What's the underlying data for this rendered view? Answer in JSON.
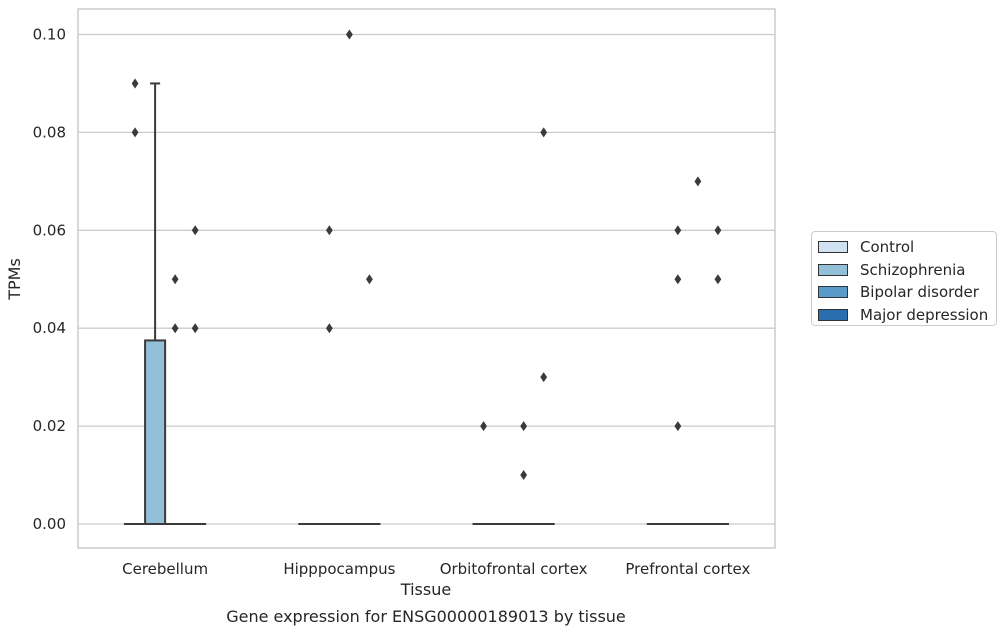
{
  "chart_data": {
    "type": "box",
    "caption": "Gene expression for ENSG00000189013 by tissue",
    "xlabel": "Tissue",
    "ylabel": "TPMs",
    "ylim": [
      -0.005,
      0.105
    ],
    "yticks": [
      "0.00",
      "0.02",
      "0.04",
      "0.06",
      "0.08",
      "0.10"
    ],
    "ytick_values": [
      0.0,
      0.02,
      0.04,
      0.06,
      0.08,
      0.1
    ],
    "grid": "horizontal",
    "legend_position": "right",
    "categories": [
      "Cerebellum",
      "Hipppocampus",
      "Orbitofrontal cortex",
      "Prefrontal cortex"
    ],
    "series": [
      {
        "name": "Control",
        "color": "#d0e1f2",
        "boxes": [
          {
            "category": "Cerebellum",
            "q1": 0,
            "median": 0,
            "q3": 0,
            "whisker_low": 0,
            "whisker_high": 0,
            "outliers": [
              0.08,
              0.09
            ]
          },
          {
            "category": "Hipppocampus",
            "q1": 0,
            "median": 0,
            "q3": 0,
            "whisker_low": 0,
            "whisker_high": 0,
            "outliers": []
          },
          {
            "category": "Orbitofrontal cortex",
            "q1": 0,
            "median": 0,
            "q3": 0,
            "whisker_low": 0,
            "whisker_high": 0,
            "outliers": [
              0.02
            ]
          },
          {
            "category": "Prefrontal cortex",
            "q1": 0,
            "median": 0,
            "q3": 0,
            "whisker_low": 0,
            "whisker_high": 0,
            "outliers": []
          }
        ]
      },
      {
        "name": "Schizophrenia",
        "color": "#94bfd9",
        "boxes": [
          {
            "category": "Cerebellum",
            "q1": 0,
            "median": 0,
            "q3": 0.0375,
            "whisker_low": 0,
            "whisker_high": 0.09,
            "outliers": []
          },
          {
            "category": "Hipppocampus",
            "q1": 0,
            "median": 0,
            "q3": 0,
            "whisker_low": 0,
            "whisker_high": 0,
            "outliers": [
              0.04,
              0.06
            ]
          },
          {
            "category": "Orbitofrontal cortex",
            "q1": 0,
            "median": 0,
            "q3": 0,
            "whisker_low": 0,
            "whisker_high": 0,
            "outliers": []
          },
          {
            "category": "Prefrontal cortex",
            "q1": 0,
            "median": 0,
            "q3": 0,
            "whisker_low": 0,
            "whisker_high": 0,
            "outliers": [
              0.02,
              0.05,
              0.06
            ]
          }
        ]
      },
      {
        "name": "Bipolar disorder",
        "color": "#5a9ac8",
        "boxes": [
          {
            "category": "Cerebellum",
            "q1": 0,
            "median": 0,
            "q3": 0,
            "whisker_low": 0,
            "whisker_high": 0,
            "outliers": [
              0.04,
              0.05
            ]
          },
          {
            "category": "Hipppocampus",
            "q1": 0,
            "median": 0,
            "q3": 0,
            "whisker_low": 0,
            "whisker_high": 0,
            "outliers": [
              0.1
            ]
          },
          {
            "category": "Orbitofrontal cortex",
            "q1": 0,
            "median": 0,
            "q3": 0,
            "whisker_low": 0,
            "whisker_high": 0,
            "outliers": [
              0.01,
              0.02
            ]
          },
          {
            "category": "Prefrontal cortex",
            "q1": 0,
            "median": 0,
            "q3": 0,
            "whisker_low": 0,
            "whisker_high": 0,
            "outliers": [
              0.07
            ]
          }
        ]
      },
      {
        "name": "Major depression",
        "color": "#2a6eb0",
        "boxes": [
          {
            "category": "Cerebellum",
            "q1": 0,
            "median": 0,
            "q3": 0,
            "whisker_low": 0,
            "whisker_high": 0,
            "outliers": [
              0.04,
              0.06
            ]
          },
          {
            "category": "Hipppocampus",
            "q1": 0,
            "median": 0,
            "q3": 0,
            "whisker_low": 0,
            "whisker_high": 0,
            "outliers": [
              0.05
            ]
          },
          {
            "category": "Orbitofrontal cortex",
            "q1": 0,
            "median": 0,
            "q3": 0,
            "whisker_low": 0,
            "whisker_high": 0,
            "outliers": [
              0.03,
              0.08
            ]
          },
          {
            "category": "Prefrontal cortex",
            "q1": 0,
            "median": 0,
            "q3": 0,
            "whisker_low": 0,
            "whisker_high": 0,
            "outliers": [
              0.05,
              0.06
            ]
          }
        ]
      }
    ]
  }
}
